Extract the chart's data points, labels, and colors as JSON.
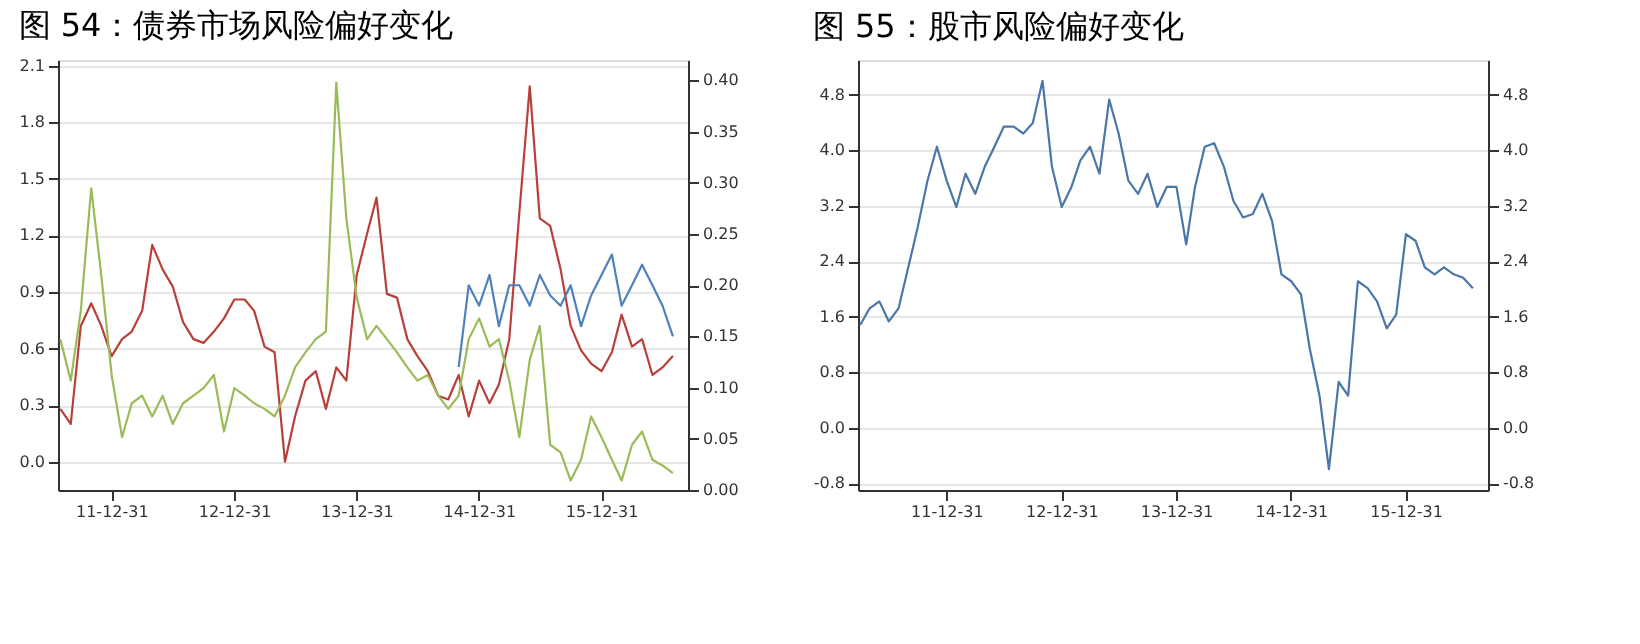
{
  "chart_data": [
    {
      "type": "line",
      "title": "图 54：债券市场风险偏好变化",
      "x": [
        "2011-08",
        "2011-09",
        "2011-10",
        "2011-11",
        "2011-12",
        "2012-01",
        "2012-02",
        "2012-03",
        "2012-04",
        "2012-05",
        "2012-06",
        "2012-07",
        "2012-08",
        "2012-09",
        "2012-10",
        "2012-11",
        "2012-12",
        "2013-01",
        "2013-02",
        "2013-03",
        "2013-04",
        "2013-05",
        "2013-06",
        "2013-07",
        "2013-08",
        "2013-09",
        "2013-10",
        "2013-11",
        "2013-12",
        "2014-01",
        "2014-02",
        "2014-03",
        "2014-04",
        "2014-05",
        "2014-06",
        "2014-07",
        "2014-08",
        "2014-09",
        "2014-10",
        "2014-11",
        "2014-12",
        "2015-01",
        "2015-02",
        "2015-03",
        "2015-04",
        "2015-05",
        "2015-06",
        "2015-07",
        "2015-08",
        "2015-09",
        "2015-10",
        "2015-11",
        "2015-12",
        "2016-01",
        "2016-02",
        "2016-03",
        "2016-04",
        "2016-05",
        "2016-06",
        "2016-07",
        "2016-08"
      ],
      "series": [
        {
          "color": "#b8403b",
          "values": [
            0.28,
            0.2,
            0.72,
            0.84,
            0.72,
            0.56,
            0.65,
            0.69,
            0.8,
            1.15,
            1.02,
            0.93,
            0.74,
            0.65,
            0.63,
            0.69,
            0.76,
            0.86,
            0.86,
            0.8,
            0.61,
            0.58,
            0.0,
            0.24,
            0.43,
            0.48,
            0.28,
            0.5,
            0.43,
            0.99,
            1.21,
            1.4,
            0.89,
            0.87,
            0.65,
            0.56,
            0.48,
            0.35,
            0.33,
            0.46,
            0.24,
            0.43,
            0.31,
            0.41,
            0.65,
            1.32,
            1.99,
            1.29,
            1.25,
            1.02,
            0.72,
            0.59,
            0.52,
            0.48,
            0.58,
            0.78,
            0.61,
            0.65,
            0.46,
            0.5,
            0.56
          ]
        },
        {
          "color": "#9bbb59",
          "values": [
            0.65,
            0.43,
            0.8,
            1.45,
            0.99,
            0.46,
            0.13,
            0.31,
            0.35,
            0.24,
            0.35,
            0.2,
            0.31,
            0.35,
            0.39,
            0.46,
            0.16,
            0.39,
            0.35,
            0.31,
            0.28,
            0.24,
            0.35,
            0.5,
            0.58,
            0.65,
            0.69,
            2.01,
            1.29,
            0.87,
            0.65,
            0.72,
            0.65,
            0.58,
            0.5,
            0.43,
            0.46,
            0.35,
            0.28,
            0.35,
            0.65,
            0.76,
            0.61,
            0.65,
            0.43,
            0.13,
            0.54,
            0.72,
            0.09,
            0.05,
            -0.1,
            0.01,
            0.24,
            0.13,
            0.01,
            -0.1,
            0.09,
            0.16,
            0.01,
            -0.02,
            -0.06
          ]
        },
        {
          "color": "#4f81bd",
          "axis": "y2",
          "x": [
            "2014-11",
            "2014-12",
            "2015-01",
            "2015-02",
            "2015-03",
            "2015-04",
            "2015-05",
            "2015-06",
            "2015-07",
            "2015-08",
            "2015-09",
            "2015-10",
            "2015-11",
            "2015-12",
            "2016-01",
            "2016-02",
            "2016-03",
            "2016-04",
            "2016-05",
            "2016-06",
            "2016-07",
            "2016-08"
          ],
          "values": [
            0.12,
            0.2,
            0.18,
            0.21,
            0.16,
            0.2,
            0.2,
            0.18,
            0.21,
            0.19,
            0.18,
            0.2,
            0.16,
            0.19,
            0.21,
            0.23,
            0.18,
            0.2,
            0.22,
            0.2,
            0.18,
            0.15
          ]
        }
      ],
      "xlim": [
        "2011-07-25",
        "2016-09-15"
      ],
      "xticks": [
        {
          "value": "2011-12-31",
          "label": "11-12-31"
        },
        {
          "value": "2012-12-31",
          "label": "12-12-31"
        },
        {
          "value": "2013-12-31",
          "label": "13-12-31"
        },
        {
          "value": "2014-12-31",
          "label": "14-12-31"
        },
        {
          "value": "2015-12-31",
          "label": "15-12-31"
        }
      ],
      "ylim": [
        -0.15,
        2.13
      ],
      "yticks": [
        {
          "value": 0,
          "label": "0.0"
        },
        {
          "value": 0.3,
          "label": "0.3"
        },
        {
          "value": 0.6,
          "label": "0.6"
        },
        {
          "value": 0.9,
          "label": "0.9"
        },
        {
          "value": 1.2,
          "label": "1.2"
        },
        {
          "value": 1.5,
          "label": "1.5"
        },
        {
          "value": 1.8,
          "label": "1.8"
        },
        {
          "value": 2.1,
          "label": "2.1"
        }
      ],
      "y2lim": [
        0,
        0.42
      ],
      "y2ticks": [
        {
          "value": 0,
          "label": "0.00"
        },
        {
          "value": 0.05,
          "label": "0.05"
        },
        {
          "value": 0.1,
          "label": "0.10"
        },
        {
          "value": 0.15,
          "label": "0.15"
        },
        {
          "value": 0.2,
          "label": "0.20"
        },
        {
          "value": 0.25,
          "label": "0.25"
        },
        {
          "value": 0.3,
          "label": "0.30"
        },
        {
          "value": 0.35,
          "label": "0.35"
        },
        {
          "value": 0.4,
          "label": "0.40"
        }
      ],
      "grid": "y"
    },
    {
      "type": "line",
      "title": "图 55：股市风险偏好变化",
      "x": [
        "2011-04",
        "2011-05",
        "2011-06",
        "2011-07",
        "2011-08",
        "2011-09",
        "2011-10",
        "2011-11",
        "2011-12",
        "2012-01",
        "2012-02",
        "2012-03",
        "2012-04",
        "2012-05",
        "2012-06",
        "2012-07",
        "2012-08",
        "2012-09",
        "2012-10",
        "2012-11",
        "2012-12",
        "2013-01",
        "2013-02",
        "2013-03",
        "2013-04",
        "2013-05",
        "2013-06",
        "2013-07",
        "2013-08",
        "2013-09",
        "2013-10",
        "2013-11",
        "2013-12",
        "2014-01",
        "2014-02",
        "2014-03",
        "2014-04",
        "2014-05",
        "2014-06",
        "2014-07",
        "2014-08",
        "2014-09",
        "2014-10",
        "2014-11",
        "2014-12",
        "2015-01",
        "2015-02",
        "2015-03",
        "2015-04",
        "2015-05",
        "2015-06",
        "2015-07",
        "2015-08",
        "2015-09",
        "2015-10",
        "2015-11",
        "2015-12",
        "2016-01",
        "2016-02",
        "2016-03",
        "2016-04",
        "2016-05",
        "2016-06",
        "2016-07",
        "2016-08"
      ],
      "series": [
        {
          "color": "#4a76a8",
          "values": [
            1.48,
            1.72,
            1.82,
            1.53,
            1.72,
            2.31,
            2.89,
            3.56,
            4.05,
            3.56,
            3.18,
            3.66,
            3.37,
            3.76,
            4.05,
            4.34,
            4.34,
            4.24,
            4.39,
            5.0,
            3.76,
            3.18,
            3.47,
            3.85,
            4.05,
            3.66,
            4.73,
            4.24,
            3.56,
            3.37,
            3.66,
            3.18,
            3.47,
            3.47,
            2.64,
            3.47,
            4.05,
            4.1,
            3.76,
            3.27,
            3.03,
            3.08,
            3.37,
            2.98,
            2.21,
            2.11,
            1.92,
            1.14,
            0.46,
            -0.6,
            0.66,
            0.46,
            2.11,
            2.01,
            1.82,
            1.43,
            1.63,
            2.79,
            2.69,
            2.31,
            2.21,
            2.31,
            2.21,
            2.16,
            2.01
          ]
        }
      ],
      "xlim": [
        "2011-03-25",
        "2016-09-18"
      ],
      "xticks": [
        {
          "value": "2011-12-31",
          "label": "11-12-31"
        },
        {
          "value": "2012-12-31",
          "label": "12-12-31"
        },
        {
          "value": "2013-12-31",
          "label": "13-12-31"
        },
        {
          "value": "2014-12-31",
          "label": "14-12-31"
        },
        {
          "value": "2015-12-31",
          "label": "15-12-31"
        }
      ],
      "ylim": [
        -0.9,
        5.3
      ],
      "yticks": [
        {
          "value": -0.8,
          "label": "-0.8"
        },
        {
          "value": 0,
          "label": "0.0"
        },
        {
          "value": 0.8,
          "label": "0.8"
        },
        {
          "value": 1.6,
          "label": "1.6"
        },
        {
          "value": 2.4,
          "label": "2.4"
        },
        {
          "value": 3.2,
          "label": "3.2"
        },
        {
          "value": 4.0,
          "label": "4.0"
        },
        {
          "value": 4.8,
          "label": "4.8"
        }
      ],
      "y2lim": [
        -0.9,
        5.3
      ],
      "y2ticks": [
        {
          "value": -0.8,
          "label": "-0.8"
        },
        {
          "value": 0,
          "label": "0.0"
        },
        {
          "value": 0.8,
          "label": "0.8"
        },
        {
          "value": 1.6,
          "label": "1.6"
        },
        {
          "value": 2.4,
          "label": "2.4"
        },
        {
          "value": 3.2,
          "label": "3.2"
        },
        {
          "value": 4.0,
          "label": "4.0"
        },
        {
          "value": 4.8,
          "label": "4.8"
        }
      ],
      "grid": "y"
    }
  ]
}
